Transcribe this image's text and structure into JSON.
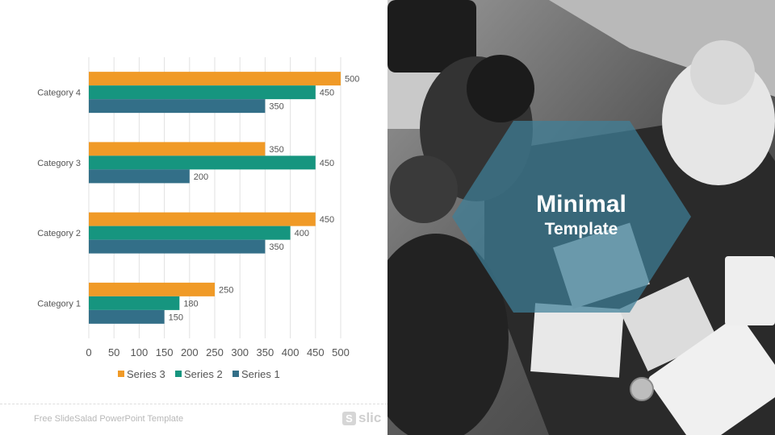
{
  "slide": {
    "title_line1": "Minimal",
    "title_line2": "Template",
    "footer_text": "Free SlideSalad PowerPoint Template",
    "logo_letter": "S",
    "logo_text": "slic"
  },
  "colors": {
    "series3": "#f09a27",
    "series2": "#16957f",
    "series1": "#336f88",
    "hexagon": "#3e7f98",
    "grid": "#e2e2e2",
    "text": "#555555"
  },
  "chart_data": {
    "type": "bar",
    "orientation": "horizontal",
    "categories": [
      "Category 1",
      "Category 2",
      "Category 3",
      "Category 4"
    ],
    "series": [
      {
        "name": "Series 3",
        "values": [
          250,
          450,
          350,
          500
        ]
      },
      {
        "name": "Series 2",
        "values": [
          180,
          400,
          450,
          450
        ]
      },
      {
        "name": "Series 1",
        "values": [
          150,
          350,
          200,
          350
        ]
      }
    ],
    "xlim": [
      0,
      500
    ],
    "x_ticks": [
      "0",
      "50",
      "100",
      "150",
      "200",
      "250",
      "300",
      "350",
      "400",
      "450",
      "500"
    ],
    "grid": "vertical",
    "legend": "bottom",
    "data_labels": true
  }
}
